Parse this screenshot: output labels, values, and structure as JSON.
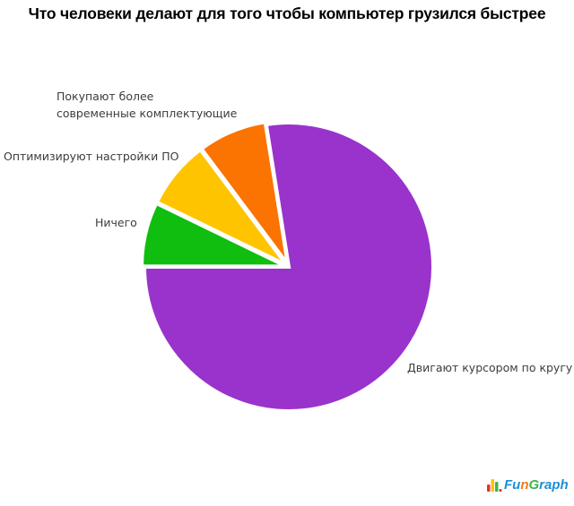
{
  "page": {
    "background": "#FFFFFF"
  },
  "chart_data": {
    "type": "pie",
    "title": "Что человеки делают для того чтобы компьютер грузился быстрее",
    "legend_position": "none",
    "labels_outside": true,
    "center": [
      322,
      298
    ],
    "radius": 161,
    "slices": [
      {
        "label": "Двигают курсором по кругу",
        "value_pct": 77.5,
        "color": "#9933CC",
        "start_angle": -180,
        "end_angle": 99,
        "explode": 0
      },
      {
        "label": "Покупают более современные комплектующие",
        "label_lines": [
          "Покупают более",
          "современные комплектующие"
        ],
        "value_pct": 8,
        "color": "#FB7300",
        "start_angle": 99,
        "end_angle": 126.7,
        "explode": 3
      },
      {
        "label": "Оптимизируют настройки ПО",
        "value_pct": 7.5,
        "color": "#FFC400",
        "start_angle": 126.7,
        "end_angle": 154.1,
        "explode": 3
      },
      {
        "label": "Ничего",
        "value_pct": 7,
        "color": "#0FBE0F",
        "start_angle": 154.1,
        "end_angle": 180,
        "explode": 3
      }
    ]
  },
  "logo": {
    "text": "FunGraph",
    "segments": [
      {
        "text": "Fu",
        "color": "#1E8FD6"
      },
      {
        "text": "n",
        "color": "#F4791F"
      },
      {
        "text": "G",
        "color": "#3CB54A"
      },
      {
        "text": "raph",
        "color": "#1E8FD6"
      }
    ],
    "icon_colors": [
      "#E3342F",
      "#FFC107",
      "#3CB54A",
      "#E3342F"
    ]
  }
}
